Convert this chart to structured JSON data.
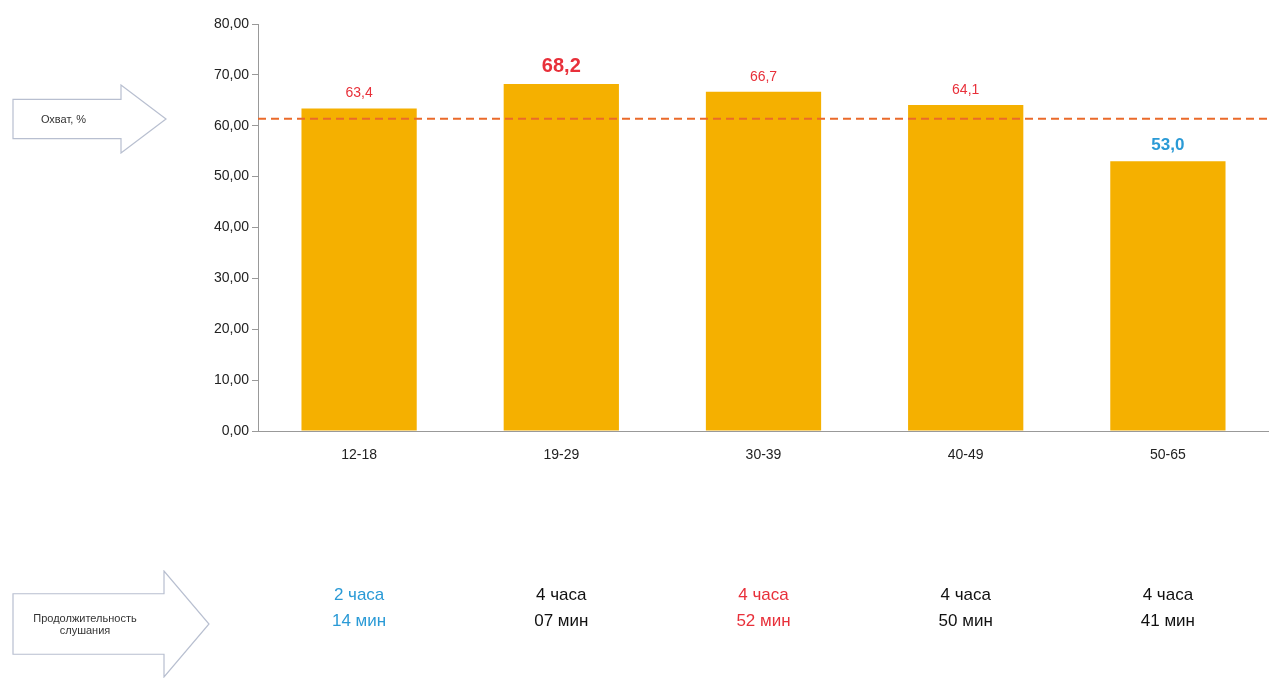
{
  "chart_data": {
    "type": "bar",
    "categories": [
      "12-18",
      "19-29",
      "30-39",
      "40-49",
      "50-65"
    ],
    "series": [
      {
        "color": "#f5b000",
        "values": [
          63.4,
          68.2,
          66.7,
          64.1,
          53.0
        ]
      }
    ],
    "value_labels": [
      "63,4",
      "68,2",
      "66,7",
      "64,1",
      "53,0"
    ],
    "ylim": [
      0,
      80
    ],
    "yticks": [
      {
        "value": 0,
        "label": "0,00"
      },
      {
        "value": 10,
        "label": "10,00"
      },
      {
        "value": 20,
        "label": "20,00"
      },
      {
        "value": 30,
        "label": "30,00"
      },
      {
        "value": 40,
        "label": "40,00"
      },
      {
        "value": 50,
        "label": "50,00"
      },
      {
        "value": 60,
        "label": "60,00"
      },
      {
        "value": 70,
        "label": "70,00"
      },
      {
        "value": 80,
        "label": "80,00"
      }
    ],
    "ref_lines": [
      {
        "axis": "y",
        "value": 61.4,
        "color": "#ea6a2a",
        "line_style": "dashed"
      }
    ],
    "grid": false,
    "legend": false,
    "annotations": [
      "Охват, %",
      "Продолжительность слушания",
      "2 часа\n14 мин",
      "4 часа\n07 мин",
      "4 часа\n52 мин",
      "4 часа\n50 мин",
      "4 часа\n41 мин"
    ]
  }
}
